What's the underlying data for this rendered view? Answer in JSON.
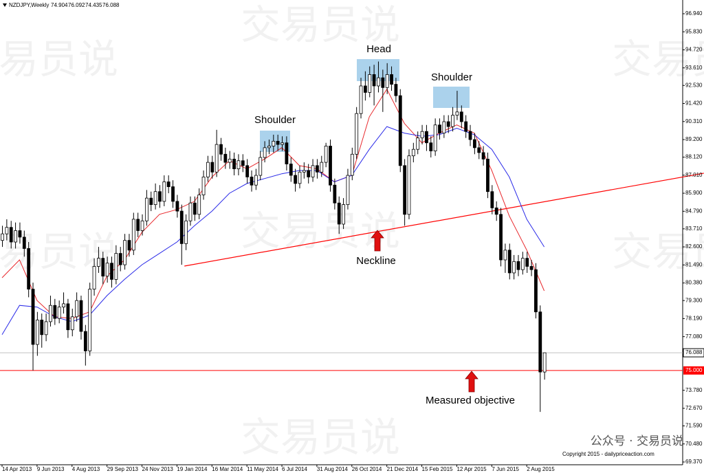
{
  "header": {
    "symbol": "NZDJPY,Weekly"
  },
  "annotations": {
    "left_shoulder": "Shoulder",
    "head": "Head",
    "right_shoulder": "Shoulder",
    "neckline": "Neckline",
    "objective": "Measured objective"
  },
  "watermark": "交易员说",
  "footer": {
    "account": "公众号 · 交易员说",
    "copyright": "Copyright 2015 - dailypriceaction.com"
  },
  "chart_data": {
    "type": "candlestick",
    "ylim": [
      69.2,
      97.7
    ],
    "yticks": [
      {
        "value": 96.94,
        "label": "96.940"
      },
      {
        "value": 95.83,
        "label": "95.830"
      },
      {
        "value": 94.72,
        "label": "94.720"
      },
      {
        "value": 93.61,
        "label": "93.610"
      },
      {
        "value": 92.53,
        "label": "92.530"
      },
      {
        "value": 91.42,
        "label": "91.420"
      },
      {
        "value": 90.31,
        "label": "90.310"
      },
      {
        "value": 89.2,
        "label": "89.200"
      },
      {
        "value": 88.12,
        "label": "88.120"
      },
      {
        "value": 87.01,
        "label": "87.010"
      },
      {
        "value": 85.9,
        "label": "85.900"
      },
      {
        "value": 84.79,
        "label": "84.790"
      },
      {
        "value": 83.71,
        "label": "83.710"
      },
      {
        "value": 82.6,
        "label": "82.600"
      },
      {
        "value": 81.49,
        "label": "81.490"
      },
      {
        "value": 80.38,
        "label": "80.380"
      },
      {
        "value": 79.3,
        "label": "79.300"
      },
      {
        "value": 78.19,
        "label": "78.190"
      },
      {
        "value": 77.08,
        "label": "77.080"
      },
      {
        "value": 73.78,
        "label": "73.780"
      },
      {
        "value": 72.67,
        "label": "72.670"
      },
      {
        "value": 71.59,
        "label": "71.590"
      },
      {
        "value": 70.48,
        "label": "70.480"
      },
      {
        "value": 69.37,
        "label": "69.370"
      }
    ],
    "categories": [
      "14 Apr 2013",
      null,
      null,
      null,
      null,
      null,
      null,
      null,
      "9 Jun 2013",
      null,
      null,
      null,
      null,
      null,
      null,
      null,
      "4 Aug 2013",
      null,
      null,
      null,
      null,
      null,
      null,
      null,
      "29 Sep 2013",
      null,
      null,
      null,
      null,
      null,
      null,
      null,
      "24 Nov 2013",
      null,
      null,
      null,
      null,
      null,
      null,
      null,
      "19 Jan 2014",
      null,
      null,
      null,
      null,
      null,
      null,
      null,
      "16 Mar 2014",
      null,
      null,
      null,
      null,
      null,
      null,
      null,
      "11 May 2014",
      null,
      null,
      null,
      null,
      null,
      null,
      null,
      "6 Jul 2014",
      null,
      null,
      null,
      null,
      null,
      null,
      null,
      "31 Aug 2014",
      null,
      null,
      null,
      null,
      null,
      null,
      null,
      "26 Oct 2014",
      null,
      null,
      null,
      null,
      null,
      null,
      null,
      "21 Dec 2014",
      null,
      null,
      null,
      null,
      null,
      null,
      null,
      "15 Feb 2015",
      null,
      null,
      null,
      null,
      null,
      null,
      null,
      "12 Apr 2015",
      null,
      null,
      null,
      null,
      null,
      null,
      null,
      "7 Jun 2015",
      null,
      null,
      null,
      null,
      null,
      null,
      null,
      "2 Aug 2015",
      null,
      null,
      null,
      null
    ],
    "ohlc": [
      [
        83.0,
        83.9,
        82.6,
        83.4
      ],
      [
        83.4,
        84.3,
        83.0,
        83.8
      ],
      [
        83.8,
        84.2,
        82.5,
        82.9
      ],
      [
        82.9,
        84.1,
        82.5,
        83.6
      ],
      [
        83.6,
        84.1,
        82.8,
        83.2
      ],
      [
        83.2,
        83.6,
        82.0,
        82.5
      ],
      [
        82.5,
        82.9,
        79.5,
        80.0
      ],
      [
        80.0,
        80.4,
        75.0,
        76.6
      ],
      [
        76.6,
        78.6,
        75.9,
        78.1
      ],
      [
        78.1,
        78.5,
        76.4,
        77.2
      ],
      [
        77.2,
        78.5,
        76.8,
        78.0
      ],
      [
        78.0,
        79.6,
        77.7,
        79.0
      ],
      [
        79.0,
        79.4,
        77.8,
        78.2
      ],
      [
        78.2,
        79.3,
        77.9,
        78.9
      ],
      [
        78.9,
        79.8,
        78.5,
        79.1
      ],
      [
        79.1,
        79.4,
        77.0,
        77.5
      ],
      [
        77.5,
        78.8,
        77.1,
        78.3
      ],
      [
        78.3,
        79.8,
        78.0,
        79.3
      ],
      [
        79.3,
        79.6,
        76.9,
        77.4
      ],
      [
        77.4,
        77.8,
        75.3,
        76.2
      ],
      [
        76.2,
        80.4,
        75.9,
        80.0
      ],
      [
        80.0,
        81.9,
        79.6,
        81.4
      ],
      [
        81.4,
        82.6,
        81.0,
        81.9
      ],
      [
        81.9,
        82.3,
        80.3,
        80.8
      ],
      [
        80.8,
        82.0,
        80.4,
        81.6
      ],
      [
        81.6,
        82.0,
        80.1,
        80.6
      ],
      [
        80.6,
        82.7,
        80.3,
        82.2
      ],
      [
        82.2,
        82.6,
        81.1,
        81.5
      ],
      [
        81.5,
        83.4,
        81.2,
        83.0
      ],
      [
        83.0,
        83.4,
        82.0,
        82.4
      ],
      [
        82.4,
        84.7,
        82.1,
        84.3
      ],
      [
        84.3,
        84.7,
        83.2,
        83.6
      ],
      [
        83.6,
        84.6,
        83.3,
        84.2
      ],
      [
        84.2,
        86.1,
        83.9,
        85.6
      ],
      [
        85.6,
        86.0,
        84.8,
        85.2
      ],
      [
        85.2,
        86.5,
        84.9,
        86.0
      ],
      [
        86.0,
        86.4,
        85.0,
        85.4
      ],
      [
        85.4,
        87.0,
        85.1,
        86.6
      ],
      [
        86.6,
        87.0,
        85.9,
        86.3
      ],
      [
        86.3,
        86.7,
        85.0,
        85.4
      ],
      [
        85.4,
        85.8,
        84.4,
        84.8
      ],
      [
        84.8,
        85.2,
        81.5,
        82.8
      ],
      [
        82.8,
        84.6,
        82.4,
        84.2
      ],
      [
        84.2,
        85.7,
        83.9,
        85.3
      ],
      [
        85.3,
        85.7,
        84.2,
        84.6
      ],
      [
        84.6,
        86.2,
        84.3,
        85.8
      ],
      [
        85.8,
        87.3,
        85.5,
        86.9
      ],
      [
        86.9,
        88.2,
        86.6,
        87.8
      ],
      [
        87.8,
        88.2,
        86.8,
        87.2
      ],
      [
        87.2,
        89.8,
        86.9,
        88.9
      ],
      [
        88.9,
        89.3,
        87.9,
        88.3
      ],
      [
        88.3,
        88.7,
        87.4,
        87.8
      ],
      [
        87.8,
        88.5,
        87.4,
        88.0
      ],
      [
        88.0,
        88.4,
        87.0,
        87.4
      ],
      [
        87.4,
        88.3,
        87.0,
        87.9
      ],
      [
        87.9,
        88.3,
        87.2,
        87.6
      ],
      [
        87.6,
        88.0,
        86.5,
        86.9
      ],
      [
        86.9,
        87.3,
        86.0,
        86.4
      ],
      [
        86.4,
        87.4,
        86.1,
        87.0
      ],
      [
        87.0,
        88.5,
        86.7,
        88.1
      ],
      [
        88.1,
        89.1,
        87.8,
        88.7
      ],
      [
        88.7,
        89.2,
        88.3,
        88.8
      ],
      [
        88.8,
        89.5,
        88.4,
        89.1
      ],
      [
        89.1,
        89.5,
        88.5,
        88.9
      ],
      [
        88.9,
        89.4,
        88.5,
        89.0
      ],
      [
        89.0,
        89.4,
        87.3,
        87.7
      ],
      [
        87.7,
        88.1,
        86.6,
        87.0
      ],
      [
        87.0,
        87.4,
        86.0,
        86.5
      ],
      [
        86.5,
        87.6,
        86.2,
        87.2
      ],
      [
        87.2,
        87.8,
        86.8,
        87.3
      ],
      [
        87.3,
        87.7,
        86.5,
        86.9
      ],
      [
        86.9,
        88.0,
        86.6,
        87.6
      ],
      [
        87.6,
        88.0,
        86.8,
        87.2
      ],
      [
        87.2,
        88.2,
        86.9,
        87.8
      ],
      [
        87.8,
        89.0,
        87.5,
        88.8
      ],
      [
        88.8,
        89.2,
        86.0,
        86.4
      ],
      [
        86.4,
        86.8,
        84.9,
        85.3
      ],
      [
        85.3,
        85.7,
        83.4,
        84.0
      ],
      [
        84.0,
        85.6,
        83.7,
        85.2
      ],
      [
        85.2,
        87.4,
        84.9,
        87.0
      ],
      [
        87.0,
        88.7,
        86.7,
        88.3
      ],
      [
        88.3,
        91.2,
        88.0,
        90.8
      ],
      [
        90.8,
        93.0,
        90.5,
        92.5
      ],
      [
        92.5,
        93.4,
        91.6,
        92.1
      ],
      [
        92.1,
        93.7,
        91.8,
        93.2
      ],
      [
        93.2,
        93.8,
        91.3,
        92.5
      ],
      [
        92.5,
        94.0,
        92.1,
        93.0
      ],
      [
        93.0,
        93.5,
        90.9,
        92.4
      ],
      [
        92.4,
        93.9,
        92.0,
        93.2
      ],
      [
        93.2,
        93.7,
        92.2,
        92.6
      ],
      [
        92.6,
        93.0,
        91.5,
        91.9
      ],
      [
        91.9,
        92.3,
        87.2,
        87.6
      ],
      [
        87.6,
        88.0,
        83.9,
        84.6
      ],
      [
        84.6,
        88.6,
        84.3,
        88.2
      ],
      [
        88.2,
        89.0,
        87.8,
        88.6
      ],
      [
        88.6,
        89.7,
        88.3,
        89.3
      ],
      [
        89.3,
        90.1,
        88.9,
        89.7
      ],
      [
        89.7,
        90.1,
        88.5,
        89.0
      ],
      [
        89.0,
        89.4,
        88.1,
        88.5
      ],
      [
        88.5,
        90.5,
        88.2,
        90.1
      ],
      [
        90.1,
        90.5,
        89.2,
        89.6
      ],
      [
        89.6,
        90.7,
        89.3,
        90.3
      ],
      [
        90.3,
        90.7,
        89.6,
        90.0
      ],
      [
        90.0,
        91.2,
        89.7,
        90.7
      ],
      [
        90.7,
        92.2,
        90.4,
        90.9
      ],
      [
        90.9,
        91.3,
        89.9,
        90.3
      ],
      [
        90.3,
        90.7,
        89.3,
        89.7
      ],
      [
        89.7,
        90.1,
        88.8,
        89.2
      ],
      [
        89.2,
        89.6,
        88.3,
        88.7
      ],
      [
        88.7,
        89.1,
        88.0,
        88.4
      ],
      [
        88.4,
        88.8,
        87.6,
        88.0
      ],
      [
        88.0,
        88.4,
        85.6,
        86.0
      ],
      [
        86.0,
        86.4,
        84.6,
        85.0
      ],
      [
        85.0,
        85.4,
        84.2,
        84.6
      ],
      [
        84.6,
        85.0,
        81.4,
        81.8
      ],
      [
        81.8,
        82.8,
        81.0,
        82.4
      ],
      [
        82.4,
        82.8,
        80.6,
        81.0
      ],
      [
        81.0,
        82.1,
        80.6,
        81.7
      ],
      [
        81.7,
        82.1,
        80.8,
        81.2
      ],
      [
        81.2,
        82.3,
        80.9,
        81.9
      ],
      [
        81.9,
        82.3,
        81.0,
        81.4
      ],
      [
        81.4,
        81.8,
        80.8,
        81.2
      ],
      [
        81.2,
        81.6,
        78.2,
        78.6
      ],
      [
        78.6,
        79.0,
        72.45,
        74.904
      ],
      [
        74.904,
        76.092,
        74.435,
        76.088
      ]
    ],
    "moving_averages": [
      {
        "color": "#e8262a",
        "x": [
          0,
          4,
          8,
          12,
          16,
          20,
          24,
          28,
          32,
          36,
          40,
          44,
          48,
          52,
          56,
          60,
          64,
          68,
          72,
          76,
          80,
          84,
          88,
          92,
          96,
          100,
          104,
          108,
          112,
          116,
          120,
          124
        ],
        "values": [
          80.7,
          81.8,
          79.3,
          78.3,
          78.2,
          78.6,
          80.8,
          81.8,
          83.5,
          84.6,
          84.9,
          85.4,
          86.9,
          87.9,
          87.4,
          88.0,
          88.7,
          87.6,
          87.4,
          86.6,
          87.0,
          90.6,
          92.3,
          90.2,
          89.0,
          89.6,
          90.1,
          89.6,
          87.3,
          84.5,
          82.4,
          79.9
        ]
      },
      {
        "color": "#2a2ae8",
        "x": [
          0,
          4,
          8,
          12,
          16,
          20,
          24,
          28,
          32,
          36,
          40,
          44,
          48,
          52,
          56,
          60,
          64,
          68,
          72,
          76,
          80,
          84,
          88,
          92,
          96,
          100,
          104,
          108,
          112,
          116,
          120,
          124
        ],
        "values": [
          77.2,
          79.0,
          78.9,
          78.3,
          78.0,
          78.4,
          79.6,
          80.6,
          81.5,
          82.2,
          82.9,
          83.9,
          84.8,
          85.9,
          86.5,
          86.8,
          87.1,
          87.3,
          87.3,
          86.6,
          87.0,
          88.6,
          90.0,
          89.6,
          89.4,
          89.5,
          89.9,
          89.5,
          88.6,
          86.9,
          84.3,
          82.6
        ]
      }
    ],
    "trendline": {
      "color": "#ff0000",
      "x": [
        41.7,
        160.5
      ],
      "values": [
        81.42,
        87.13
      ]
    },
    "hline": {
      "value": 75,
      "label": "75.000",
      "color": "#ff0000"
    }
  }
}
